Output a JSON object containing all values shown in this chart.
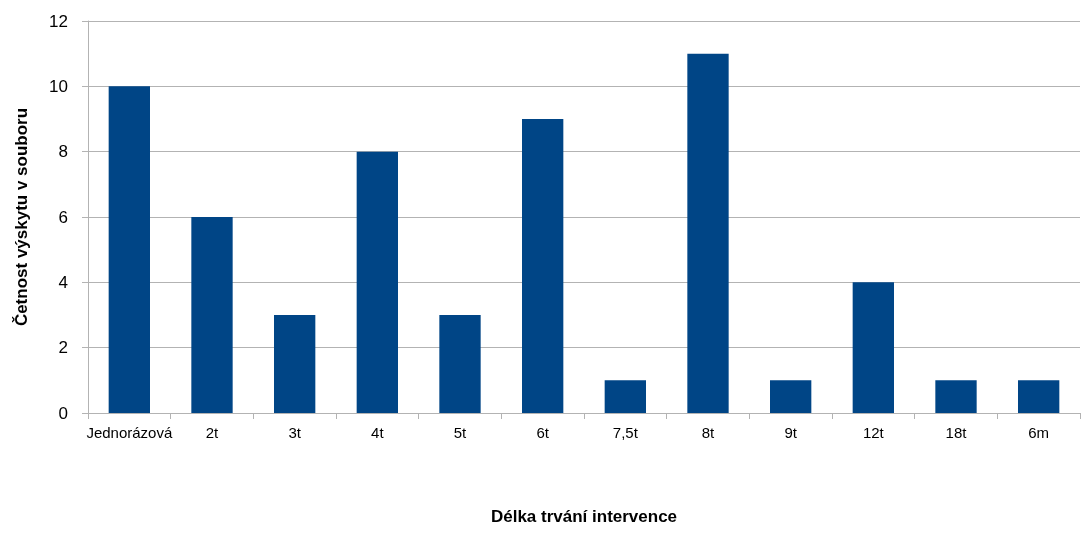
{
  "chart_data": {
    "type": "bar",
    "xlabel": "Délka trvání intervence",
    "ylabel": "Četnost výskytu v souboru",
    "categories": [
      "Jednorázová",
      "2t",
      "3t",
      "4t",
      "5t",
      "6t",
      "7,5t",
      "8t",
      "9t",
      "12t",
      "18t",
      "6m"
    ],
    "values": [
      10,
      6,
      3,
      8,
      3,
      9,
      1,
      11,
      1,
      4,
      1,
      1
    ],
    "color": "#004586",
    "ylim": [
      0,
      12
    ],
    "yticks": [
      0,
      2,
      4,
      6,
      8,
      10,
      12
    ],
    "grid": "y"
  }
}
